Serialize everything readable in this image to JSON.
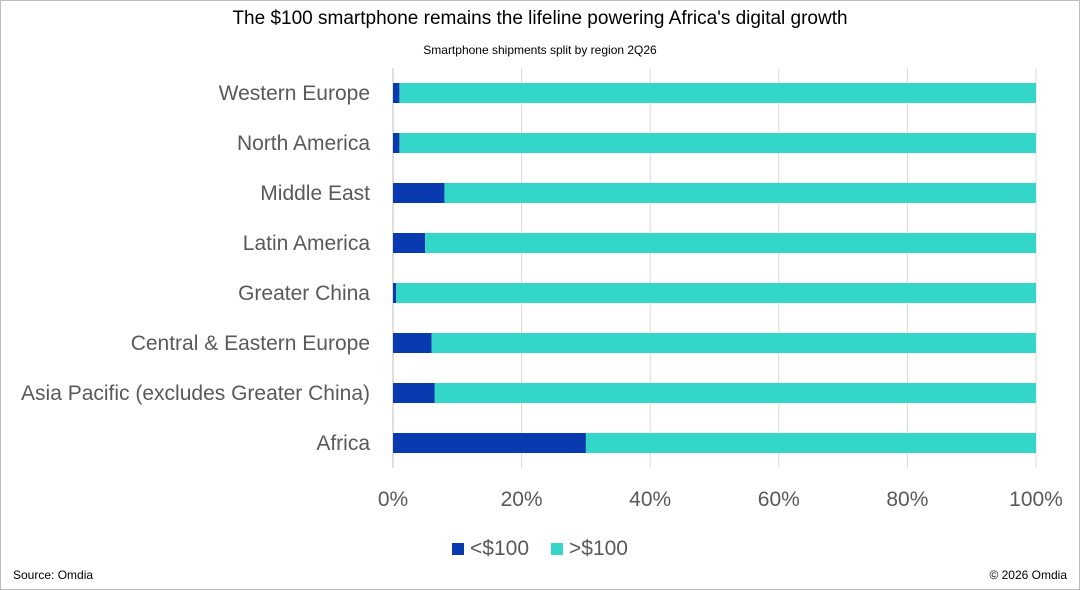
{
  "header": {
    "title": "The $100 smartphone remains the lifeline powering Africa's digital growth",
    "subtitle": "Smartphone shipments split by region 2Q26"
  },
  "footer": {
    "source": "Source: Omdia",
    "copyright": "© 2026 Omdia"
  },
  "colors": {
    "under_100": "#0a3ab0",
    "over_100": "#33d6c8",
    "gridline": "#d9d9d9",
    "axis": "#bfbfbf"
  },
  "chart_data": {
    "type": "bar",
    "orientation": "horizontal",
    "stacked": "percent",
    "title": "The $100 smartphone remains the lifeline powering Africa's digital growth",
    "subtitle": "Smartphone shipments split by region 2Q26",
    "categories": [
      "Western Europe",
      "North America",
      "Middle East",
      "Latin America",
      "Greater China",
      "Central & Eastern Europe",
      "Asia Pacific (excludes Greater China)",
      "Africa"
    ],
    "series": [
      {
        "name": "<$100",
        "values": [
          1,
          1,
          8,
          5,
          0.5,
          6,
          6.5,
          30
        ]
      },
      {
        "name": ">$100",
        "values": [
          99,
          99,
          92,
          95,
          99.5,
          94,
          93.5,
          70
        ]
      }
    ],
    "xlim": [
      0,
      100
    ],
    "x_ticks": [
      "0%",
      "20%",
      "40%",
      "60%",
      "80%",
      "100%"
    ],
    "grid": true,
    "legend": "bottom"
  }
}
